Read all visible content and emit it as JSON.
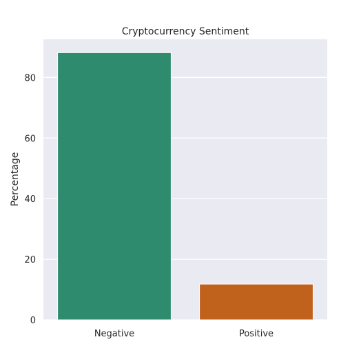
{
  "chart_data": {
    "type": "bar",
    "title": "Cryptocurrency Sentiment",
    "xlabel": "",
    "ylabel": "Percentage",
    "categories": [
      "Negative",
      "Positive"
    ],
    "values": [
      88.2,
      11.8
    ],
    "colors": [
      "#2e8b6e",
      "#c0611c"
    ],
    "ylim": [
      0,
      92.6
    ],
    "yticks": [
      0,
      20,
      40,
      60,
      80
    ],
    "grid": true,
    "style": {
      "plot_background": "#eaeaf2",
      "grid_color": "#ffffff"
    }
  }
}
